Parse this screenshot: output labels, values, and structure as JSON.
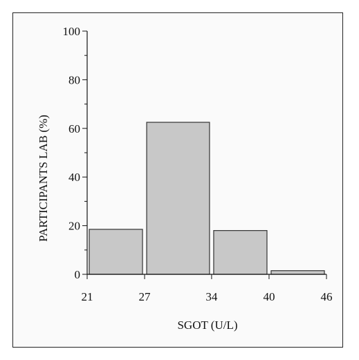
{
  "chart_data": {
    "type": "bar",
    "xlabel": "SGOT (U/L)",
    "ylabel": "PARTICIPANTS LAB (%)",
    "ylim": [
      0,
      100
    ],
    "yticks": [
      0,
      20,
      40,
      60,
      80,
      100
    ],
    "xticks": [
      21,
      27,
      34,
      40,
      46
    ],
    "bins": [
      {
        "from": 21,
        "to": 27,
        "value": 18.5
      },
      {
        "from": 27,
        "to": 34,
        "value": 62.5
      },
      {
        "from": 34,
        "to": 40,
        "value": 18.0
      },
      {
        "from": 40,
        "to": 46,
        "value": 1.5
      }
    ],
    "bar_fill": "#c8c8c8",
    "bar_stroke": "#333333"
  }
}
